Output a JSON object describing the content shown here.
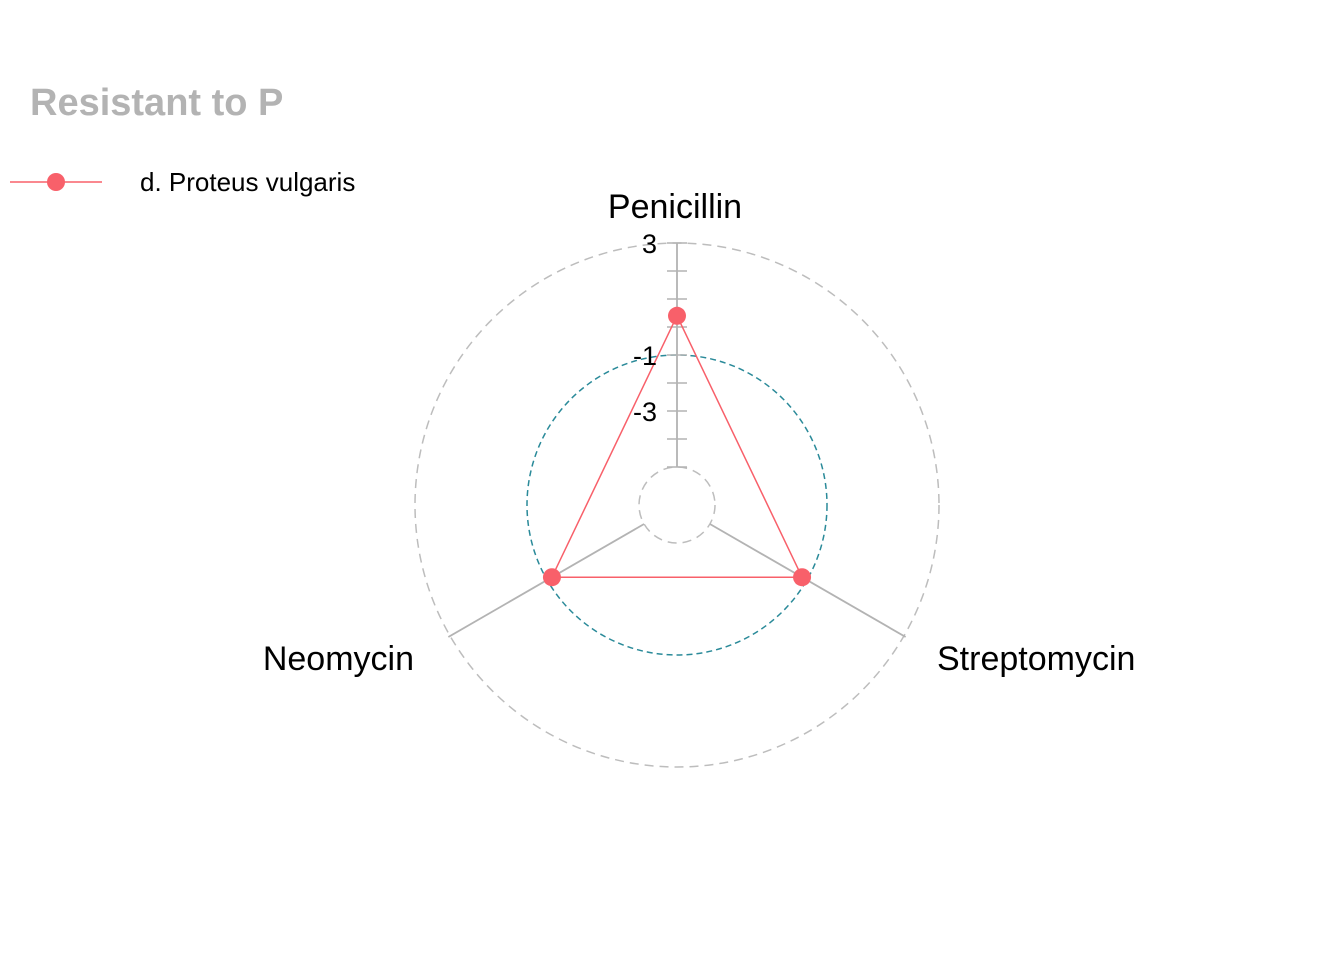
{
  "title": "Resistant to P",
  "colors": {
    "title": "#b3b3b3",
    "series": "#f8606a",
    "grid": "#bdbdbd",
    "axis": "#b3b3b3",
    "center_ring": "#2a8a99"
  },
  "chart_data": {
    "type": "radar",
    "title": "Resistant to P",
    "axes": [
      "Penicillin",
      "Streptomycin",
      "Neomycin"
    ],
    "tick_labels": [
      "3",
      "-1",
      "-3"
    ],
    "r_range": [
      -5,
      3
    ],
    "legend_position": "top-left",
    "series": [
      {
        "name": "d. Proteus vulgaris",
        "values": [
          0.4,
          -1.2,
          -1.2
        ]
      }
    ],
    "reference_circles": [
      {
        "value": -5,
        "style": "dashed",
        "color": "#bdbdbd"
      },
      {
        "value": -1,
        "style": "dashed",
        "color": "#2a8a99"
      },
      {
        "value": 3,
        "style": "dashed",
        "color": "#bdbdbd"
      }
    ]
  }
}
